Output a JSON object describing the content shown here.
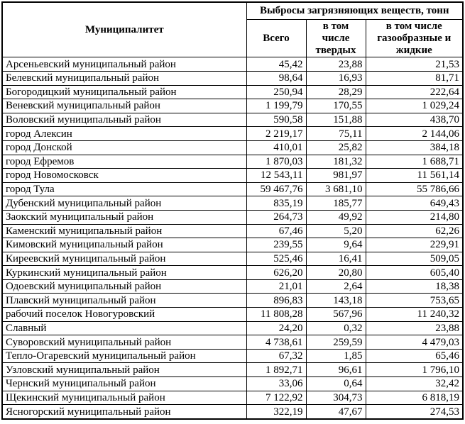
{
  "table": {
    "headers": {
      "municipality": "Муниципалитет",
      "emissions_group": "Выбросы загрязняющих веществ, тонн",
      "total": "Всего",
      "solid": "в том числе твердых",
      "gaseous_liquid": "в том числе газообразные и жидкие"
    },
    "rows": [
      {
        "name": "Арсеньевский муниципальный район",
        "total": "45,42",
        "solid": "23,88",
        "gaseous_liquid": "21,53"
      },
      {
        "name": "Белевский муниципальный район",
        "total": "98,64",
        "solid": "16,93",
        "gaseous_liquid": "81,71"
      },
      {
        "name": "Богородицкий муниципальный район",
        "total": "250,94",
        "solid": "28,29",
        "gaseous_liquid": "222,64"
      },
      {
        "name": "Веневский муниципальный район",
        "total": "1 199,79",
        "solid": "170,55",
        "gaseous_liquid": "1 029,24"
      },
      {
        "name": "Воловский муниципальный район",
        "total": "590,58",
        "solid": "151,88",
        "gaseous_liquid": "438,70"
      },
      {
        "name": "город Алексин",
        "total": "2 219,17",
        "solid": "75,11",
        "gaseous_liquid": "2 144,06"
      },
      {
        "name": "город Донской",
        "total": "410,01",
        "solid": "25,82",
        "gaseous_liquid": "384,18"
      },
      {
        "name": "город Ефремов",
        "total": "1 870,03",
        "solid": "181,32",
        "gaseous_liquid": "1 688,71"
      },
      {
        "name": "город Новомосковск",
        "total": "12 543,11",
        "solid": "981,97",
        "gaseous_liquid": "11 561,14"
      },
      {
        "name": "город Тула",
        "total": "59 467,76",
        "solid": "3 681,10",
        "gaseous_liquid": "55 786,66"
      },
      {
        "name": "Дубенский муниципальный район",
        "total": "835,19",
        "solid": "185,77",
        "gaseous_liquid": "649,43"
      },
      {
        "name": "Заокский муниципальный район",
        "total": "264,73",
        "solid": "49,92",
        "gaseous_liquid": "214,80"
      },
      {
        "name": "Каменский муниципальный район",
        "total": "67,46",
        "solid": "5,20",
        "gaseous_liquid": "62,26"
      },
      {
        "name": "Кимовский муниципальный район",
        "total": "239,55",
        "solid": "9,64",
        "gaseous_liquid": "229,91"
      },
      {
        "name": "Киреевский муниципальный район",
        "total": "525,46",
        "solid": "16,41",
        "gaseous_liquid": "509,05"
      },
      {
        "name": "Куркинский муниципальный район",
        "total": "626,20",
        "solid": "20,80",
        "gaseous_liquid": "605,40"
      },
      {
        "name": "Одоевский муниципальный район",
        "total": "21,01",
        "solid": "2,64",
        "gaseous_liquid": "18,38"
      },
      {
        "name": "Плавский муниципальный район",
        "total": "896,83",
        "solid": "143,18",
        "gaseous_liquid": "753,65"
      },
      {
        "name": "рабочий поселок Новогуровский",
        "total": "11 808,28",
        "solid": "567,96",
        "gaseous_liquid": "11 240,32"
      },
      {
        "name": "Славный",
        "total": "24,20",
        "solid": "0,32",
        "gaseous_liquid": "23,88"
      },
      {
        "name": "Суворовский муниципальный район",
        "total": "4 738,61",
        "solid": "259,59",
        "gaseous_liquid": "4 479,03"
      },
      {
        "name": "Тепло-Огаревский муниципальный район",
        "total": "67,32",
        "solid": "1,85",
        "gaseous_liquid": "65,46"
      },
      {
        "name": "Узловский муниципальный район",
        "total": "1 892,71",
        "solid": "96,61",
        "gaseous_liquid": "1 796,10"
      },
      {
        "name": "Чернский муниципальный район",
        "total": "33,06",
        "solid": "0,64",
        "gaseous_liquid": "32,42"
      },
      {
        "name": "Щекинский муниципальный район",
        "total": "7 122,92",
        "solid": "304,73",
        "gaseous_liquid": "6 818,19"
      },
      {
        "name": "Ясногорский муниципальный район",
        "total": "322,19",
        "solid": "47,67",
        "gaseous_liquid": "274,53"
      }
    ]
  }
}
